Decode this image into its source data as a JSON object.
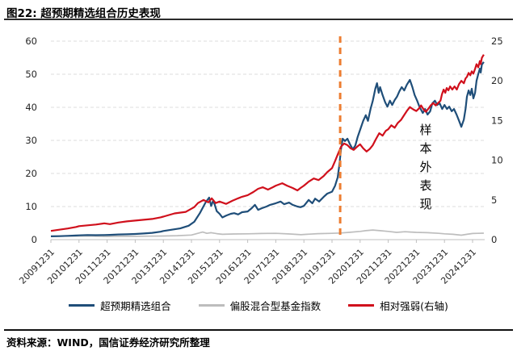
{
  "chart_data": {
    "type": "line",
    "title": "图22: 超预期精选组合历史表现",
    "source": "资料来源：WIND，国信证券经济研究所整理",
    "annotation": {
      "text": "样本外表现",
      "orientation": "vertical"
    },
    "left_axis": {
      "min": 0,
      "max": 60,
      "step": 10,
      "tick_labels": [
        "0",
        "10",
        "20",
        "30",
        "40",
        "50",
        "60"
      ]
    },
    "right_axis": {
      "min": 0,
      "max": 25,
      "step": 5,
      "tick_labels": [
        "0",
        "5",
        "10",
        "15",
        "20",
        "25"
      ]
    },
    "x_domain": [
      2010.0,
      2025.4
    ],
    "x_tick_labels": [
      "20091231",
      "20101231",
      "20111231",
      "20121231",
      "20131231",
      "20141231",
      "20151231",
      "20161231",
      "20171231",
      "20181231",
      "20191231",
      "20201231",
      "20211231",
      "20221231",
      "20231231",
      "20241231"
    ],
    "grid": {
      "show": true,
      "color": "#DCDCDC",
      "style": "dashed"
    },
    "axis_line_color": "#BFBFBF",
    "vline": {
      "x": 2020.29,
      "style": "dashed",
      "color": "#ED7D31"
    },
    "legend_position": "bottom",
    "series": [
      {
        "id": "portfolio",
        "name": "超预期精选组合",
        "axis": "left",
        "color": "#1F4E79",
        "points": [
          [
            2010.0,
            1.0
          ],
          [
            2010.3,
            1.05
          ],
          [
            2010.6,
            1.15
          ],
          [
            2010.9,
            1.25
          ],
          [
            2011.0,
            1.3
          ],
          [
            2011.3,
            1.4
          ],
          [
            2011.6,
            1.35
          ],
          [
            2011.9,
            1.4
          ],
          [
            2012.1,
            1.45
          ],
          [
            2012.4,
            1.55
          ],
          [
            2012.7,
            1.6
          ],
          [
            2013.0,
            1.7
          ],
          [
            2013.3,
            1.85
          ],
          [
            2013.6,
            2.05
          ],
          [
            2013.9,
            2.4
          ],
          [
            2014.0,
            2.6
          ],
          [
            2014.3,
            3.0
          ],
          [
            2014.6,
            3.4
          ],
          [
            2014.9,
            4.2
          ],
          [
            2015.1,
            5.4
          ],
          [
            2015.3,
            8.0
          ],
          [
            2015.5,
            11.2
          ],
          [
            2015.63,
            12.7
          ],
          [
            2015.7,
            10.2
          ],
          [
            2015.78,
            11.9
          ],
          [
            2015.9,
            8.6
          ],
          [
            2016.0,
            7.8
          ],
          [
            2016.1,
            6.7
          ],
          [
            2016.24,
            7.3
          ],
          [
            2016.4,
            7.8
          ],
          [
            2016.52,
            8.0
          ],
          [
            2016.66,
            7.6
          ],
          [
            2016.8,
            8.3
          ],
          [
            2017.0,
            8.5
          ],
          [
            2017.14,
            9.5
          ],
          [
            2017.26,
            10.5
          ],
          [
            2017.37,
            9.0
          ],
          [
            2017.5,
            9.5
          ],
          [
            2017.67,
            10.0
          ],
          [
            2017.8,
            10.5
          ],
          [
            2018.0,
            11.0
          ],
          [
            2018.17,
            11.5
          ],
          [
            2018.3,
            10.7
          ],
          [
            2018.47,
            11.2
          ],
          [
            2018.6,
            10.5
          ],
          [
            2018.77,
            10.0
          ],
          [
            2018.88,
            9.8
          ],
          [
            2019.0,
            10.2
          ],
          [
            2019.17,
            12.0
          ],
          [
            2019.3,
            11.0
          ],
          [
            2019.4,
            12.4
          ],
          [
            2019.54,
            11.5
          ],
          [
            2019.7,
            12.9
          ],
          [
            2019.83,
            13.9
          ],
          [
            2020.0,
            14.5
          ],
          [
            2020.11,
            16.3
          ],
          [
            2020.2,
            18.8
          ],
          [
            2020.26,
            22.4
          ],
          [
            2020.32,
            27.3
          ],
          [
            2020.38,
            30.5
          ],
          [
            2020.46,
            29.8
          ],
          [
            2020.55,
            30.5
          ],
          [
            2020.63,
            29.0
          ],
          [
            2020.74,
            27.3
          ],
          [
            2020.83,
            28.5
          ],
          [
            2020.91,
            31.0
          ],
          [
            2021.03,
            33.9
          ],
          [
            2021.11,
            35.9
          ],
          [
            2021.2,
            37.6
          ],
          [
            2021.28,
            35.9
          ],
          [
            2021.37,
            39.5
          ],
          [
            2021.45,
            42.0
          ],
          [
            2021.54,
            45.6
          ],
          [
            2021.6,
            47.3
          ],
          [
            2021.66,
            44.4
          ],
          [
            2021.71,
            46.1
          ],
          [
            2021.8,
            43.7
          ],
          [
            2021.89,
            41.5
          ],
          [
            2021.97,
            40.2
          ],
          [
            2022.06,
            42.0
          ],
          [
            2022.14,
            40.7
          ],
          [
            2022.23,
            42.2
          ],
          [
            2022.31,
            43.2
          ],
          [
            2022.4,
            44.9
          ],
          [
            2022.48,
            46.1
          ],
          [
            2022.57,
            45.1
          ],
          [
            2022.66,
            46.8
          ],
          [
            2022.77,
            48.3
          ],
          [
            2022.86,
            46.1
          ],
          [
            2022.94,
            43.7
          ],
          [
            2023.03,
            42.0
          ],
          [
            2023.11,
            40.2
          ],
          [
            2023.23,
            38.3
          ],
          [
            2023.31,
            39.5
          ],
          [
            2023.4,
            37.8
          ],
          [
            2023.49,
            38.8
          ],
          [
            2023.57,
            41.2
          ],
          [
            2023.66,
            42.0
          ],
          [
            2023.74,
            40.7
          ],
          [
            2023.83,
            41.2
          ],
          [
            2023.92,
            39.5
          ],
          [
            2024.0,
            40.7
          ],
          [
            2024.09,
            39.5
          ],
          [
            2024.17,
            40.2
          ],
          [
            2024.26,
            38.8
          ],
          [
            2024.34,
            39.5
          ],
          [
            2024.43,
            37.8
          ],
          [
            2024.52,
            35.9
          ],
          [
            2024.6,
            34.1
          ],
          [
            2024.69,
            36.3
          ],
          [
            2024.75,
            39.5
          ],
          [
            2024.8,
            43.2
          ],
          [
            2024.86,
            45.1
          ],
          [
            2024.92,
            43.7
          ],
          [
            2024.97,
            45.6
          ],
          [
            2025.03,
            42.7
          ],
          [
            2025.09,
            44.4
          ],
          [
            2025.14,
            48.0
          ],
          [
            2025.2,
            50.0
          ],
          [
            2025.26,
            51.7
          ],
          [
            2025.29,
            50.5
          ],
          [
            2025.33,
            52.9
          ],
          [
            2025.4,
            53.7
          ]
        ]
      },
      {
        "id": "fund-index",
        "name": "偏股混合型基金指数",
        "axis": "left",
        "color": "#BDBDBD",
        "points": [
          [
            2010.0,
            1.0
          ],
          [
            2010.5,
            1.05
          ],
          [
            2011.0,
            1.1
          ],
          [
            2011.5,
            1.05
          ],
          [
            2012.0,
            0.95
          ],
          [
            2012.5,
            1.0
          ],
          [
            2013.0,
            1.0
          ],
          [
            2013.5,
            1.05
          ],
          [
            2014.0,
            1.1
          ],
          [
            2014.5,
            1.2
          ],
          [
            2015.0,
            1.4
          ],
          [
            2015.4,
            2.3
          ],
          [
            2015.55,
            1.9
          ],
          [
            2015.7,
            2.1
          ],
          [
            2015.9,
            1.8
          ],
          [
            2016.1,
            1.6
          ],
          [
            2016.5,
            1.7
          ],
          [
            2017.0,
            1.75
          ],
          [
            2017.5,
            1.85
          ],
          [
            2018.0,
            1.9
          ],
          [
            2018.5,
            1.7
          ],
          [
            2018.9,
            1.5
          ],
          [
            2019.0,
            1.55
          ],
          [
            2019.5,
            1.8
          ],
          [
            2020.0,
            1.9
          ],
          [
            2020.3,
            2.0
          ],
          [
            2020.6,
            2.2
          ],
          [
            2021.0,
            2.5
          ],
          [
            2021.2,
            2.7
          ],
          [
            2021.45,
            2.9
          ],
          [
            2021.7,
            2.7
          ],
          [
            2022.0,
            2.5
          ],
          [
            2022.3,
            2.2
          ],
          [
            2022.6,
            2.4
          ],
          [
            2022.8,
            2.3
          ],
          [
            2023.0,
            2.2
          ],
          [
            2023.4,
            2.1
          ],
          [
            2023.8,
            1.9
          ],
          [
            2024.0,
            1.75
          ],
          [
            2024.3,
            1.6
          ],
          [
            2024.6,
            1.35
          ],
          [
            2024.8,
            1.6
          ],
          [
            2025.0,
            1.85
          ],
          [
            2025.2,
            1.9
          ],
          [
            2025.4,
            1.95
          ]
        ]
      },
      {
        "id": "relative-strength",
        "name": "相对强弱(右轴)",
        "axis": "right",
        "color": "#D0101C",
        "points": [
          [
            2010.0,
            1.1
          ],
          [
            2010.3,
            1.25
          ],
          [
            2010.6,
            1.4
          ],
          [
            2010.9,
            1.6
          ],
          [
            2011.0,
            1.7
          ],
          [
            2011.3,
            1.8
          ],
          [
            2011.6,
            1.9
          ],
          [
            2011.9,
            2.05
          ],
          [
            2012.1,
            1.95
          ],
          [
            2012.4,
            2.15
          ],
          [
            2012.7,
            2.3
          ],
          [
            2013.0,
            2.4
          ],
          [
            2013.3,
            2.5
          ],
          [
            2013.6,
            2.6
          ],
          [
            2013.9,
            2.8
          ],
          [
            2014.0,
            2.9
          ],
          [
            2014.4,
            3.3
          ],
          [
            2014.8,
            3.5
          ],
          [
            2015.1,
            4.1
          ],
          [
            2015.23,
            4.6
          ],
          [
            2015.43,
            5.0
          ],
          [
            2015.6,
            4.7
          ],
          [
            2015.72,
            5.2
          ],
          [
            2015.86,
            4.6
          ],
          [
            2016.0,
            4.8
          ],
          [
            2016.23,
            4.5
          ],
          [
            2016.46,
            4.9
          ],
          [
            2016.66,
            5.2
          ],
          [
            2016.8,
            5.4
          ],
          [
            2017.0,
            5.6
          ],
          [
            2017.2,
            6.0
          ],
          [
            2017.37,
            6.4
          ],
          [
            2017.54,
            6.6
          ],
          [
            2017.72,
            6.3
          ],
          [
            2017.89,
            6.6
          ],
          [
            2018.0,
            6.8
          ],
          [
            2018.23,
            7.1
          ],
          [
            2018.4,
            6.8
          ],
          [
            2018.6,
            6.5
          ],
          [
            2018.77,
            6.2
          ],
          [
            2018.88,
            6.5
          ],
          [
            2019.0,
            6.8
          ],
          [
            2019.17,
            7.3
          ],
          [
            2019.35,
            7.7
          ],
          [
            2019.52,
            7.5
          ],
          [
            2019.7,
            8.0
          ],
          [
            2019.83,
            8.5
          ],
          [
            2020.0,
            9.0
          ],
          [
            2020.11,
            9.9
          ],
          [
            2020.2,
            10.7
          ],
          [
            2020.32,
            11.7
          ],
          [
            2020.43,
            12.1
          ],
          [
            2020.55,
            11.9
          ],
          [
            2020.66,
            11.5
          ],
          [
            2020.77,
            11.3
          ],
          [
            2020.89,
            11.7
          ],
          [
            2021.0,
            12.0
          ],
          [
            2021.11,
            11.5
          ],
          [
            2021.23,
            11.1
          ],
          [
            2021.34,
            11.4
          ],
          [
            2021.45,
            11.9
          ],
          [
            2021.57,
            12.7
          ],
          [
            2021.68,
            13.4
          ],
          [
            2021.8,
            13.1
          ],
          [
            2021.91,
            13.7
          ],
          [
            2022.0,
            13.9
          ],
          [
            2022.11,
            14.4
          ],
          [
            2022.23,
            14.1
          ],
          [
            2022.34,
            14.7
          ],
          [
            2022.46,
            15.1
          ],
          [
            2022.57,
            15.7
          ],
          [
            2022.66,
            16.2
          ],
          [
            2022.77,
            16.7
          ],
          [
            2022.89,
            16.4
          ],
          [
            2023.0,
            16.2
          ],
          [
            2023.09,
            16.5
          ],
          [
            2023.17,
            16.9
          ],
          [
            2023.26,
            16.4
          ],
          [
            2023.34,
            16.1
          ],
          [
            2023.43,
            16.5
          ],
          [
            2023.51,
            16.9
          ],
          [
            2023.6,
            17.2
          ],
          [
            2023.69,
            16.9
          ],
          [
            2023.77,
            17.2
          ],
          [
            2023.86,
            17.5
          ],
          [
            2023.91,
            18.3
          ],
          [
            2023.97,
            18.9
          ],
          [
            2024.03,
            18.5
          ],
          [
            2024.08,
            19.1
          ],
          [
            2024.14,
            18.8
          ],
          [
            2024.2,
            19.3
          ],
          [
            2024.28,
            18.9
          ],
          [
            2024.36,
            19.3
          ],
          [
            2024.44,
            18.9
          ],
          [
            2024.52,
            19.6
          ],
          [
            2024.6,
            20.0
          ],
          [
            2024.69,
            19.7
          ],
          [
            2024.75,
            20.3
          ],
          [
            2024.8,
            20.5
          ],
          [
            2024.86,
            21.0
          ],
          [
            2024.92,
            20.7
          ],
          [
            2024.97,
            21.2
          ],
          [
            2025.03,
            20.9
          ],
          [
            2025.09,
            21.5
          ],
          [
            2025.14,
            22.1
          ],
          [
            2025.2,
            21.7
          ],
          [
            2025.26,
            22.5
          ],
          [
            2025.29,
            22.1
          ],
          [
            2025.33,
            22.9
          ],
          [
            2025.4,
            23.3
          ]
        ]
      }
    ]
  }
}
